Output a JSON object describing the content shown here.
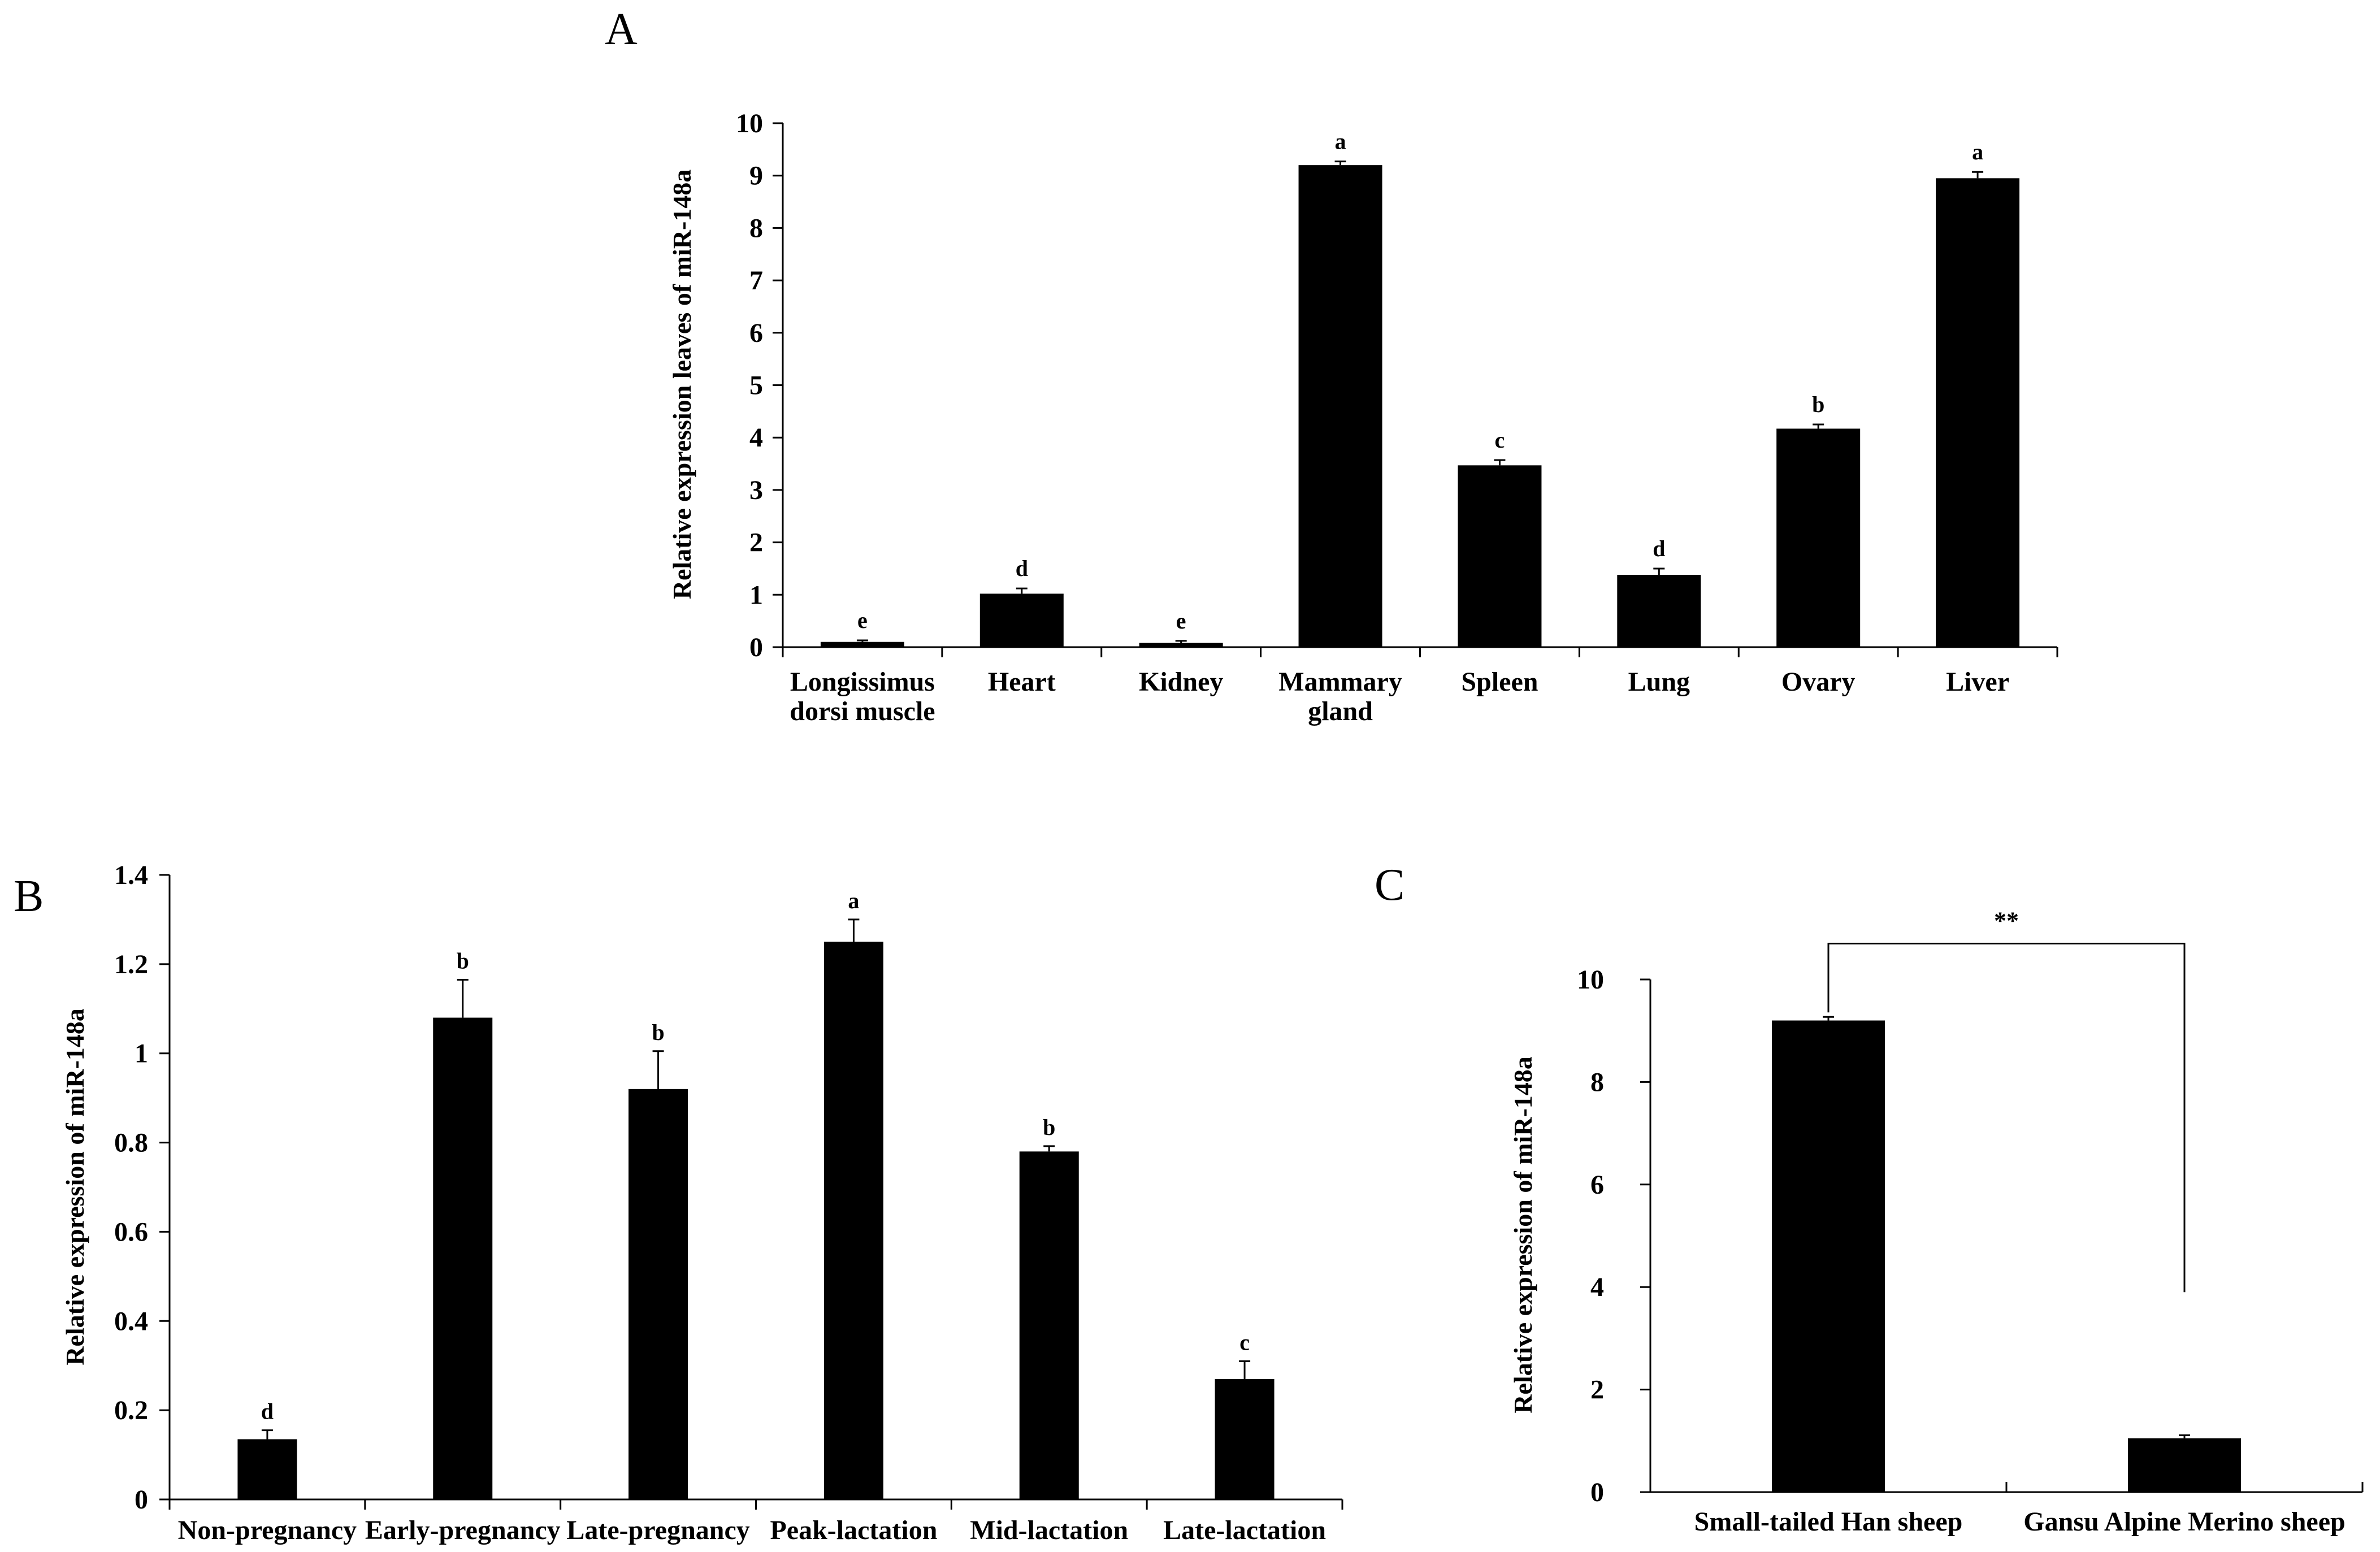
{
  "chart_data": [
    {
      "panel": "A",
      "type": "bar",
      "ylabel": "Relative expression leaves of miR-148a",
      "ylim": [
        0,
        10
      ],
      "yticks": [
        "0",
        "1",
        "2",
        "3",
        "4",
        "5",
        "6",
        "7",
        "8",
        "9",
        "10"
      ],
      "categories": [
        [
          "Longissimus",
          "dorsi muscle"
        ],
        [
          "Heart"
        ],
        [
          "Kidney"
        ],
        [
          "Mammary",
          "gland"
        ],
        [
          "Spleen"
        ],
        [
          "Lung"
        ],
        [
          "Ovary"
        ],
        [
          "Liver"
        ]
      ],
      "values": [
        0.1,
        1.02,
        0.08,
        9.2,
        3.47,
        1.38,
        4.17,
        8.95
      ],
      "errors": [
        0.03,
        0.1,
        0.04,
        0.07,
        0.1,
        0.12,
        0.08,
        0.12
      ],
      "labels": [
        "e",
        "d",
        "e",
        "a",
        "c",
        "d",
        "b",
        "a"
      ]
    },
    {
      "panel": "B",
      "type": "bar",
      "ylabel": "Relative expression of miR-148a",
      "ylim": [
        0,
        1.4
      ],
      "yticks": [
        "0",
        "0.2",
        "0.4",
        "0.6",
        "0.8",
        "1",
        "1.2",
        "1.4"
      ],
      "categories": [
        [
          "Non-pregnancy"
        ],
        [
          "Early-pregnancy"
        ],
        [
          "Late-pregnancy"
        ],
        [
          "Peak-lactation"
        ],
        [
          "Mid-lactation"
        ],
        [
          "Late-lactation"
        ]
      ],
      "values": [
        0.135,
        1.08,
        0.92,
        1.25,
        0.78,
        0.27
      ],
      "errors": [
        0.02,
        0.085,
        0.085,
        0.05,
        0.012,
        0.04
      ],
      "labels": [
        "d",
        "b",
        "b",
        "a",
        "b",
        "c"
      ]
    },
    {
      "panel": "C",
      "type": "bar",
      "ylabel": "Relative expression of miR-148a",
      "ylim": [
        0,
        10
      ],
      "yticks": [
        "0",
        "2",
        "4",
        "6",
        "8",
        "10"
      ],
      "ytick_values": [
        0,
        2,
        4,
        6,
        8,
        10
      ],
      "categories": [
        [
          "Small-tailed Han sheep"
        ],
        [
          "Gansu Alpine Merino sheep"
        ]
      ],
      "values": [
        9.2,
        1.05
      ],
      "errors": [
        0.07,
        0.06
      ],
      "labels": [
        "",
        ""
      ],
      "significance": "**"
    }
  ]
}
